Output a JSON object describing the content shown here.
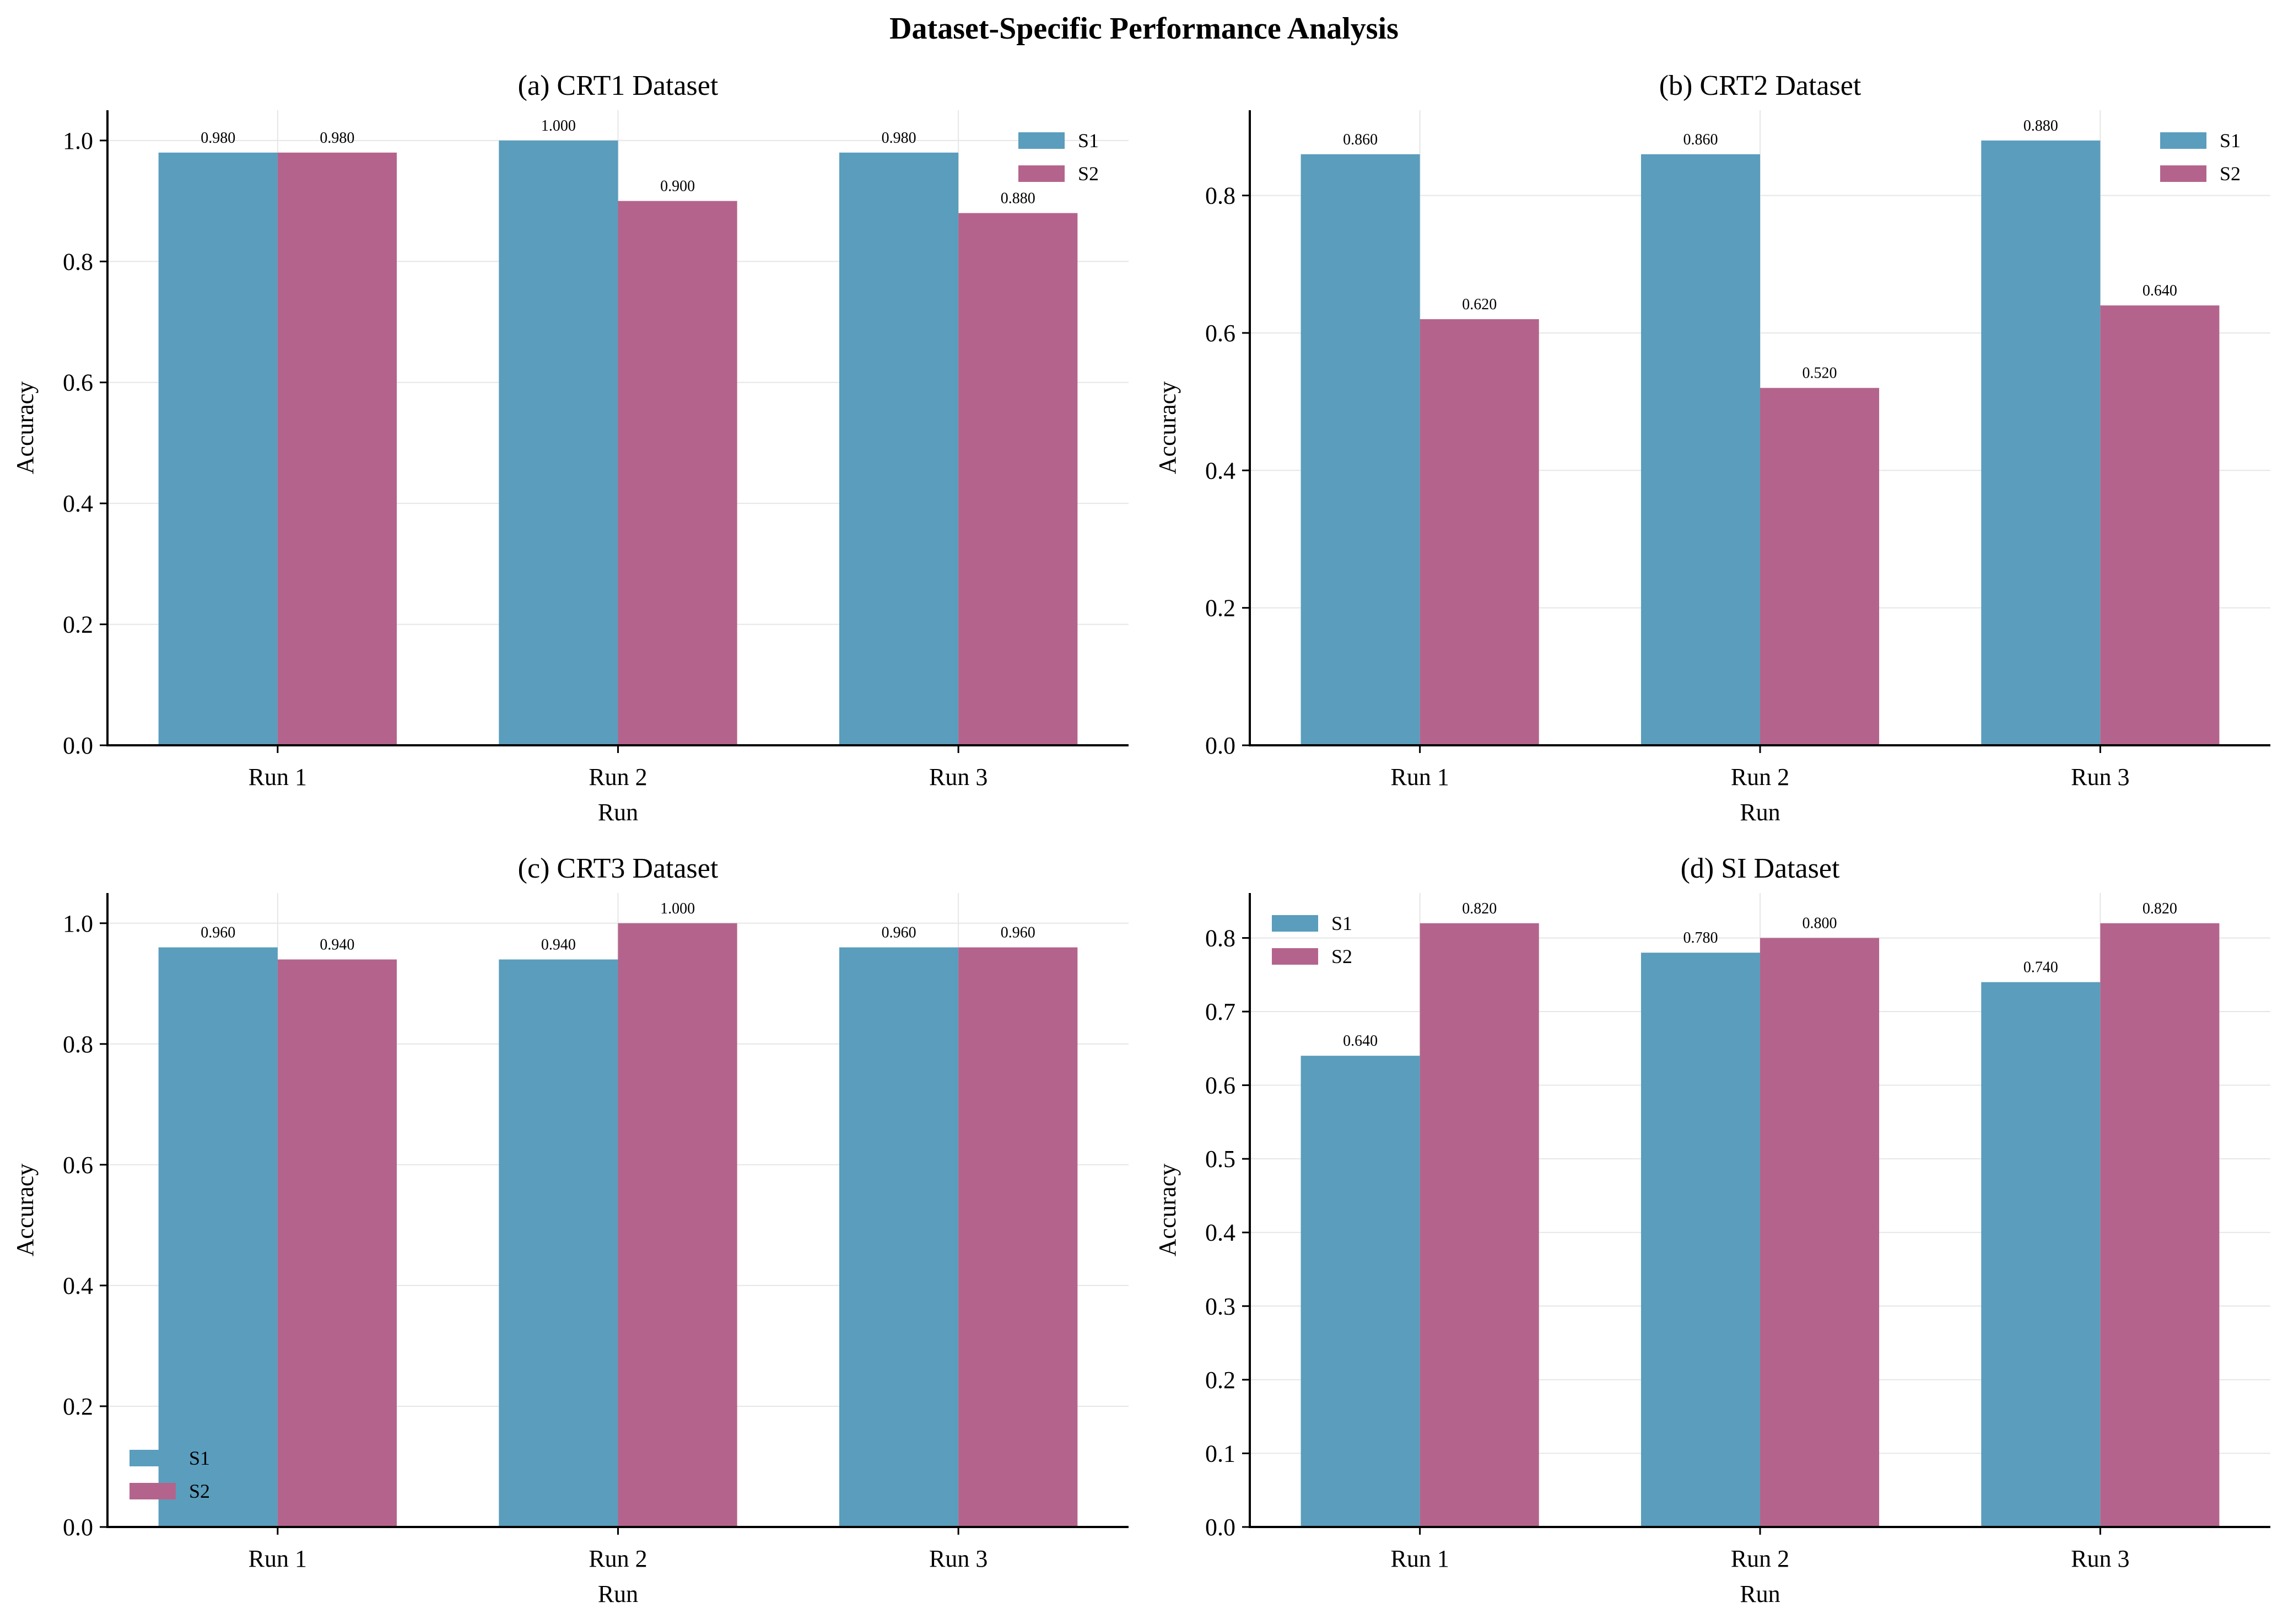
{
  "figure_title": "Dataset-Specific Performance Analysis",
  "chart_data": [
    {
      "type": "bar",
      "title": "(a) CRT1 Dataset",
      "xlabel": "Run",
      "ylabel": "Accuracy",
      "categories": [
        "Run 1",
        "Run 2",
        "Run 3"
      ],
      "series": [
        {
          "name": "S1",
          "values": [
            0.98,
            1.0,
            0.98
          ],
          "labels": [
            "0.980",
            "1.000",
            "0.980"
          ]
        },
        {
          "name": "S2",
          "values": [
            0.98,
            0.9,
            0.88
          ],
          "labels": [
            "0.980",
            "0.900",
            "0.880"
          ]
        }
      ],
      "ylim": [
        0,
        1.05
      ],
      "yticks": [
        0.0,
        0.2,
        0.4,
        0.6,
        0.8,
        1.0
      ],
      "ytick_labels": [
        "0.0",
        "0.2",
        "0.4",
        "0.6",
        "0.8",
        "1.0"
      ],
      "legend": "top-right",
      "grid": true
    },
    {
      "type": "bar",
      "title": "(b) CRT2 Dataset",
      "xlabel": "Run",
      "ylabel": "Accuracy",
      "categories": [
        "Run 1",
        "Run 2",
        "Run 3"
      ],
      "series": [
        {
          "name": "S1",
          "values": [
            0.86,
            0.86,
            0.88
          ],
          "labels": [
            "0.860",
            "0.860",
            "0.880"
          ]
        },
        {
          "name": "S2",
          "values": [
            0.62,
            0.52,
            0.64
          ],
          "labels": [
            "0.620",
            "0.520",
            "0.640"
          ]
        }
      ],
      "ylim": [
        0,
        0.924
      ],
      "yticks": [
        0.0,
        0.2,
        0.4,
        0.6,
        0.8
      ],
      "ytick_labels": [
        "0.0",
        "0.2",
        "0.4",
        "0.6",
        "0.8"
      ],
      "legend": "top-right",
      "grid": true
    },
    {
      "type": "bar",
      "title": "(c) CRT3 Dataset",
      "xlabel": "Run",
      "ylabel": "Accuracy",
      "categories": [
        "Run 1",
        "Run 2",
        "Run 3"
      ],
      "series": [
        {
          "name": "S1",
          "values": [
            0.96,
            0.94,
            0.96
          ],
          "labels": [
            "0.960",
            "0.940",
            "0.960"
          ]
        },
        {
          "name": "S2",
          "values": [
            0.94,
            1.0,
            0.96
          ],
          "labels": [
            "0.940",
            "1.000",
            "0.960"
          ]
        }
      ],
      "ylim": [
        0,
        1.05
      ],
      "yticks": [
        0.0,
        0.2,
        0.4,
        0.6,
        0.8,
        1.0
      ],
      "ytick_labels": [
        "0.0",
        "0.2",
        "0.4",
        "0.6",
        "0.8",
        "1.0"
      ],
      "legend": "bottom-left",
      "grid": true
    },
    {
      "type": "bar",
      "title": "(d) SI Dataset",
      "xlabel": "Run",
      "ylabel": "Accuracy",
      "categories": [
        "Run 1",
        "Run 2",
        "Run 3"
      ],
      "series": [
        {
          "name": "S1",
          "values": [
            0.64,
            0.78,
            0.74
          ],
          "labels": [
            "0.640",
            "0.780",
            "0.740"
          ]
        },
        {
          "name": "S2",
          "values": [
            0.82,
            0.8,
            0.82
          ],
          "labels": [
            "0.820",
            "0.800",
            "0.820"
          ]
        }
      ],
      "ylim": [
        0,
        0.861
      ],
      "yticks": [
        0.0,
        0.1,
        0.2,
        0.3,
        0.4,
        0.5,
        0.6,
        0.7,
        0.8
      ],
      "ytick_labels": [
        "0.0",
        "0.1",
        "0.2",
        "0.3",
        "0.4",
        "0.5",
        "0.6",
        "0.7",
        "0.8"
      ],
      "legend": "top-left",
      "grid": true
    }
  ],
  "colors": {
    "S1": "#5a9dbd",
    "S2": "#b4648c",
    "grid": "#e6e6e6"
  }
}
